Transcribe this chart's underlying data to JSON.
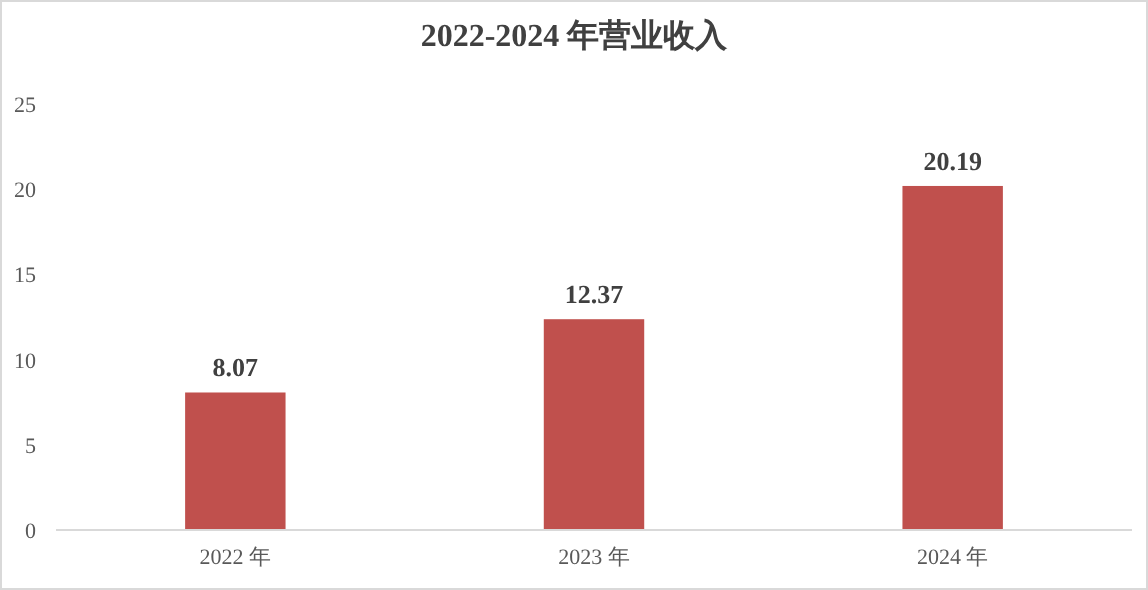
{
  "chart_data": {
    "type": "bar",
    "title": "2022-2024 年营业收入",
    "categories": [
      "2022 年",
      "2023 年",
      "2024 年"
    ],
    "values": [
      8.07,
      12.37,
      20.19
    ],
    "color": "#c0504d",
    "ylim": [
      0,
      25
    ],
    "yticks": [
      0,
      5,
      10,
      15,
      20,
      25
    ],
    "grid": false,
    "data_labels": true
  }
}
